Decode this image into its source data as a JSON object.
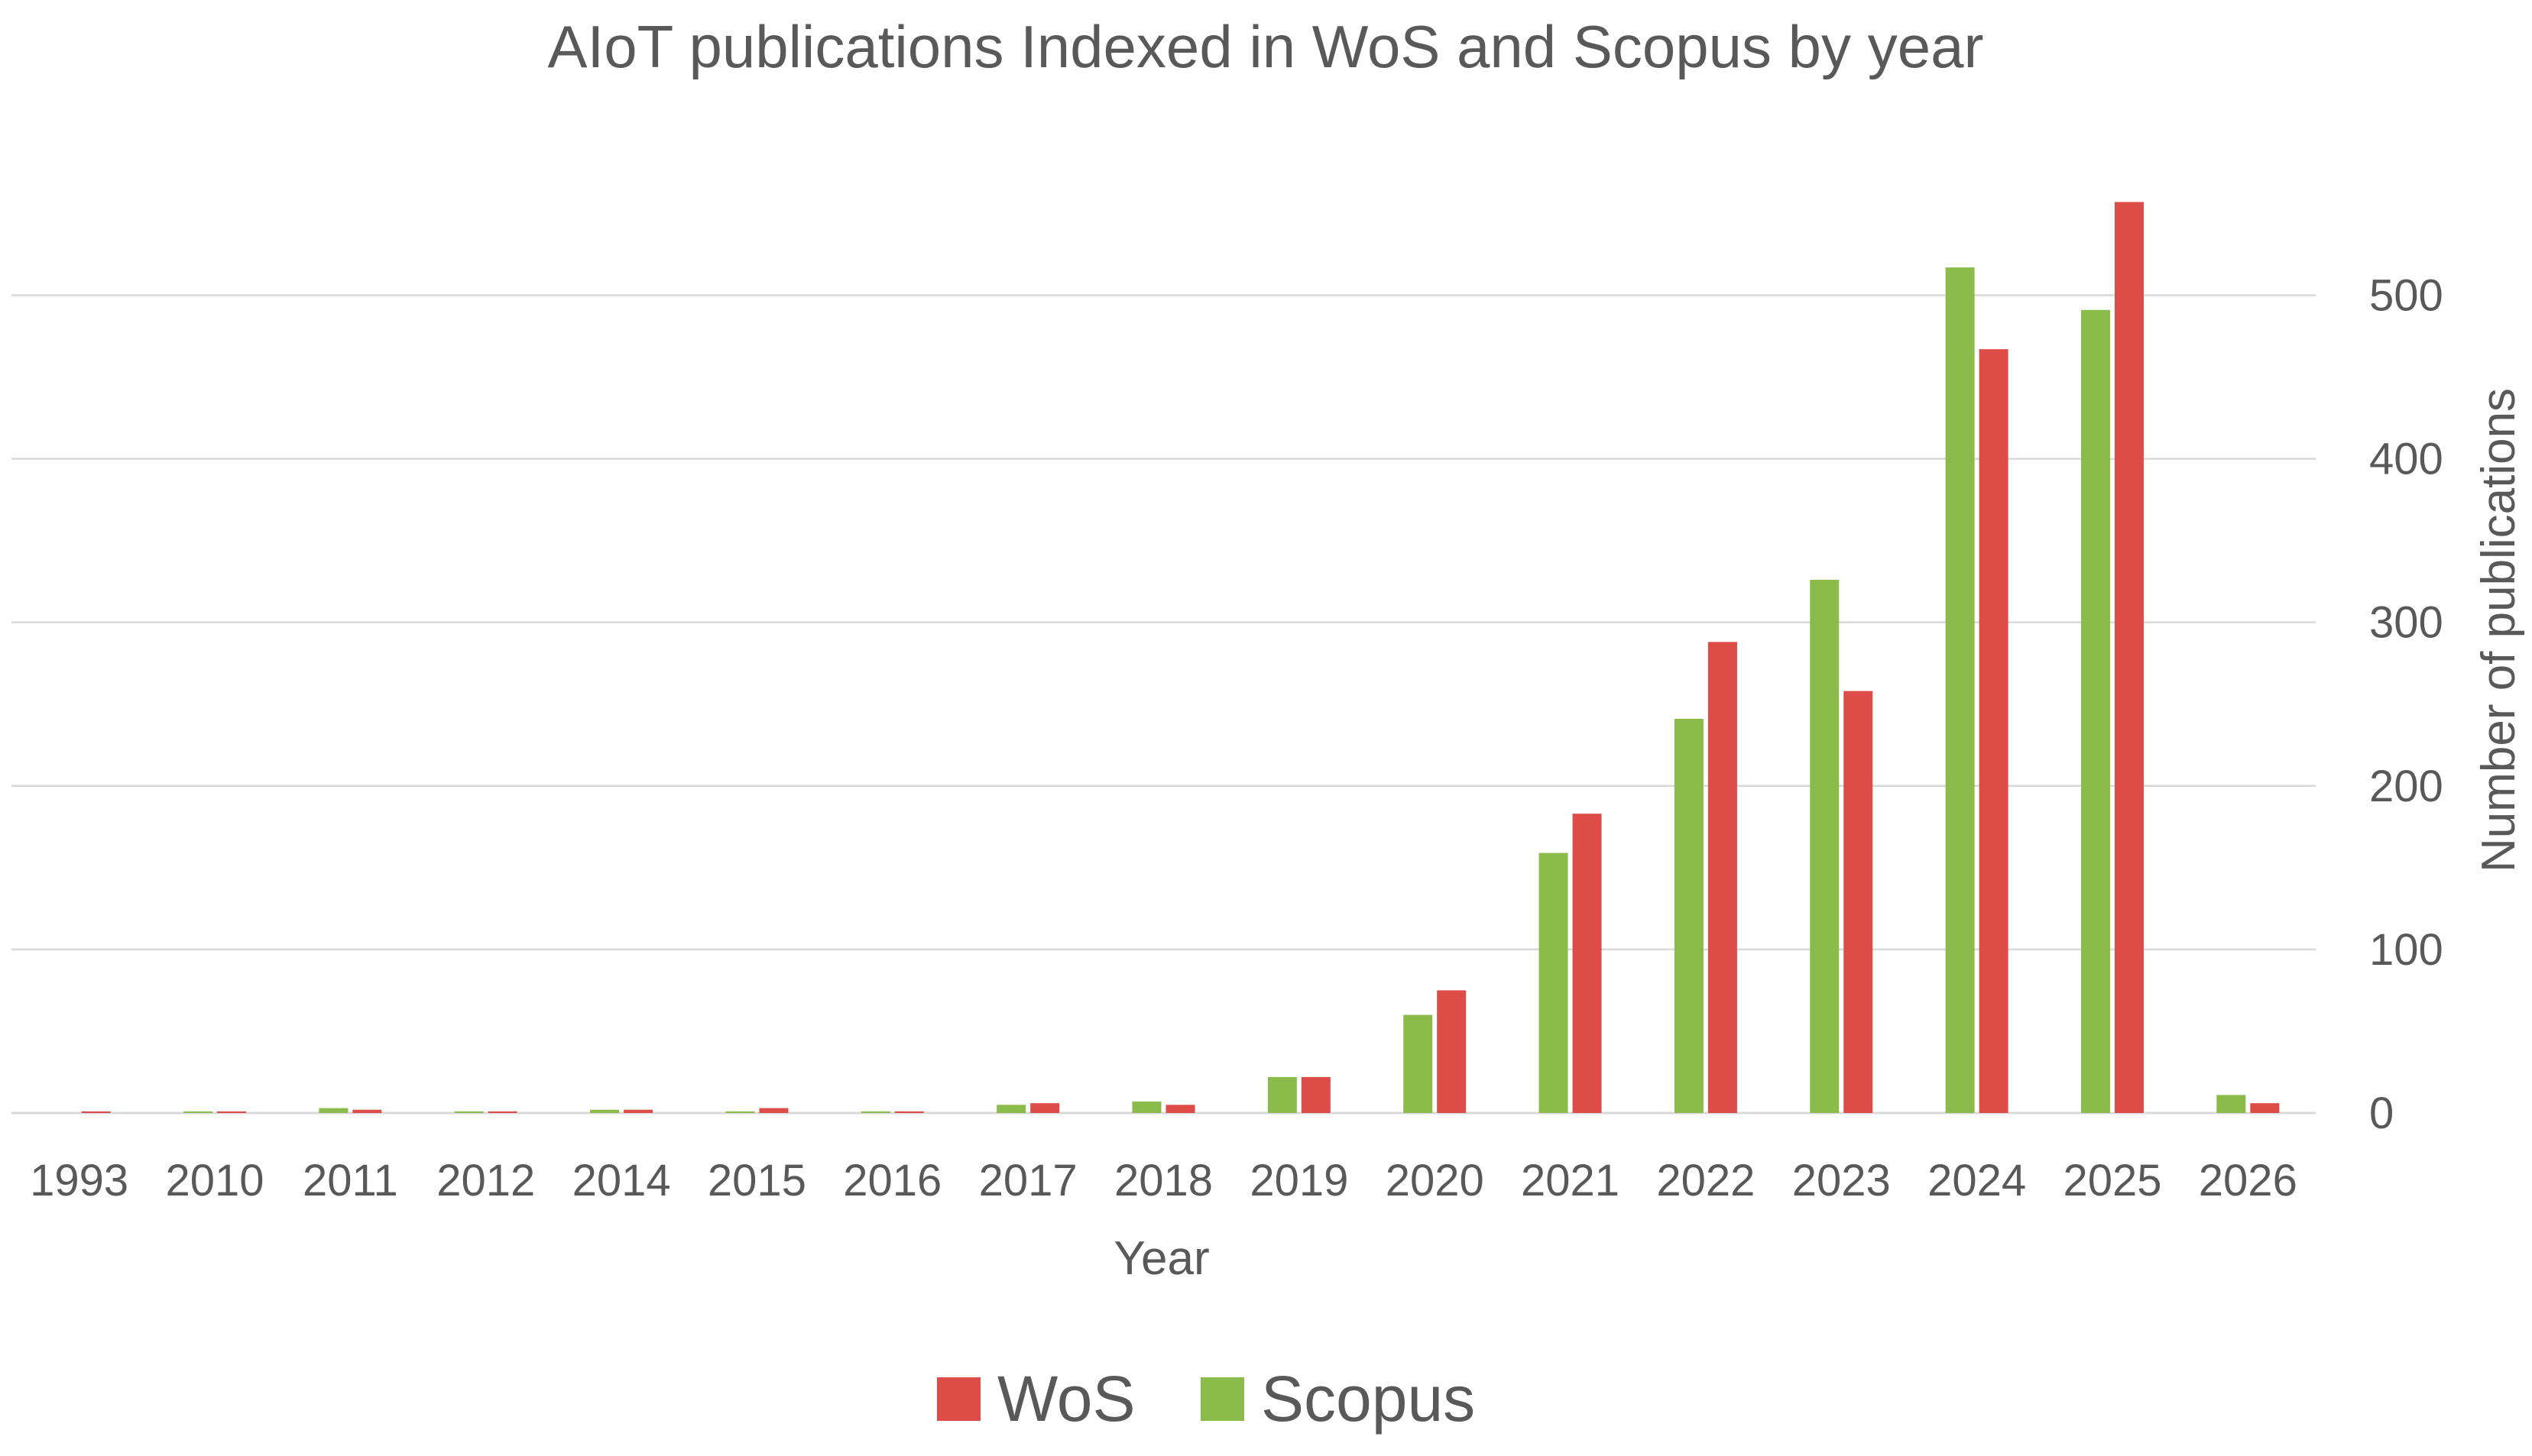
{
  "chart_data": {
    "type": "bar",
    "title": "AIoT publications Indexed in WoS and Scopus by year",
    "xlabel": "Year",
    "ylabel": "Number of publications",
    "y_axis_side": "right",
    "ylim": [
      0,
      560
    ],
    "yticks": [
      0,
      100,
      200,
      300,
      400,
      500
    ],
    "grid": true,
    "legend_position": "bottom-center",
    "categories": [
      "1993",
      "2010",
      "2011",
      "2012",
      "2014",
      "2015",
      "2016",
      "2017",
      "2018",
      "2019",
      "2020",
      "2021",
      "2022",
      "2023",
      "2024",
      "2025",
      "2026"
    ],
    "series": [
      {
        "name": "Scopus",
        "color": "#8bbb4a",
        "values": [
          0,
          1,
          3,
          1,
          2,
          1,
          1,
          5,
          7,
          22,
          60,
          159,
          241,
          326,
          517,
          491,
          11
        ]
      },
      {
        "name": "WoS",
        "color": "#de4c47",
        "values": [
          1,
          1,
          2,
          1,
          2,
          3,
          1,
          6,
          5,
          22,
          75,
          183,
          288,
          258,
          467,
          557,
          6
        ]
      }
    ],
    "legend_order": [
      "WoS",
      "Scopus"
    ]
  }
}
